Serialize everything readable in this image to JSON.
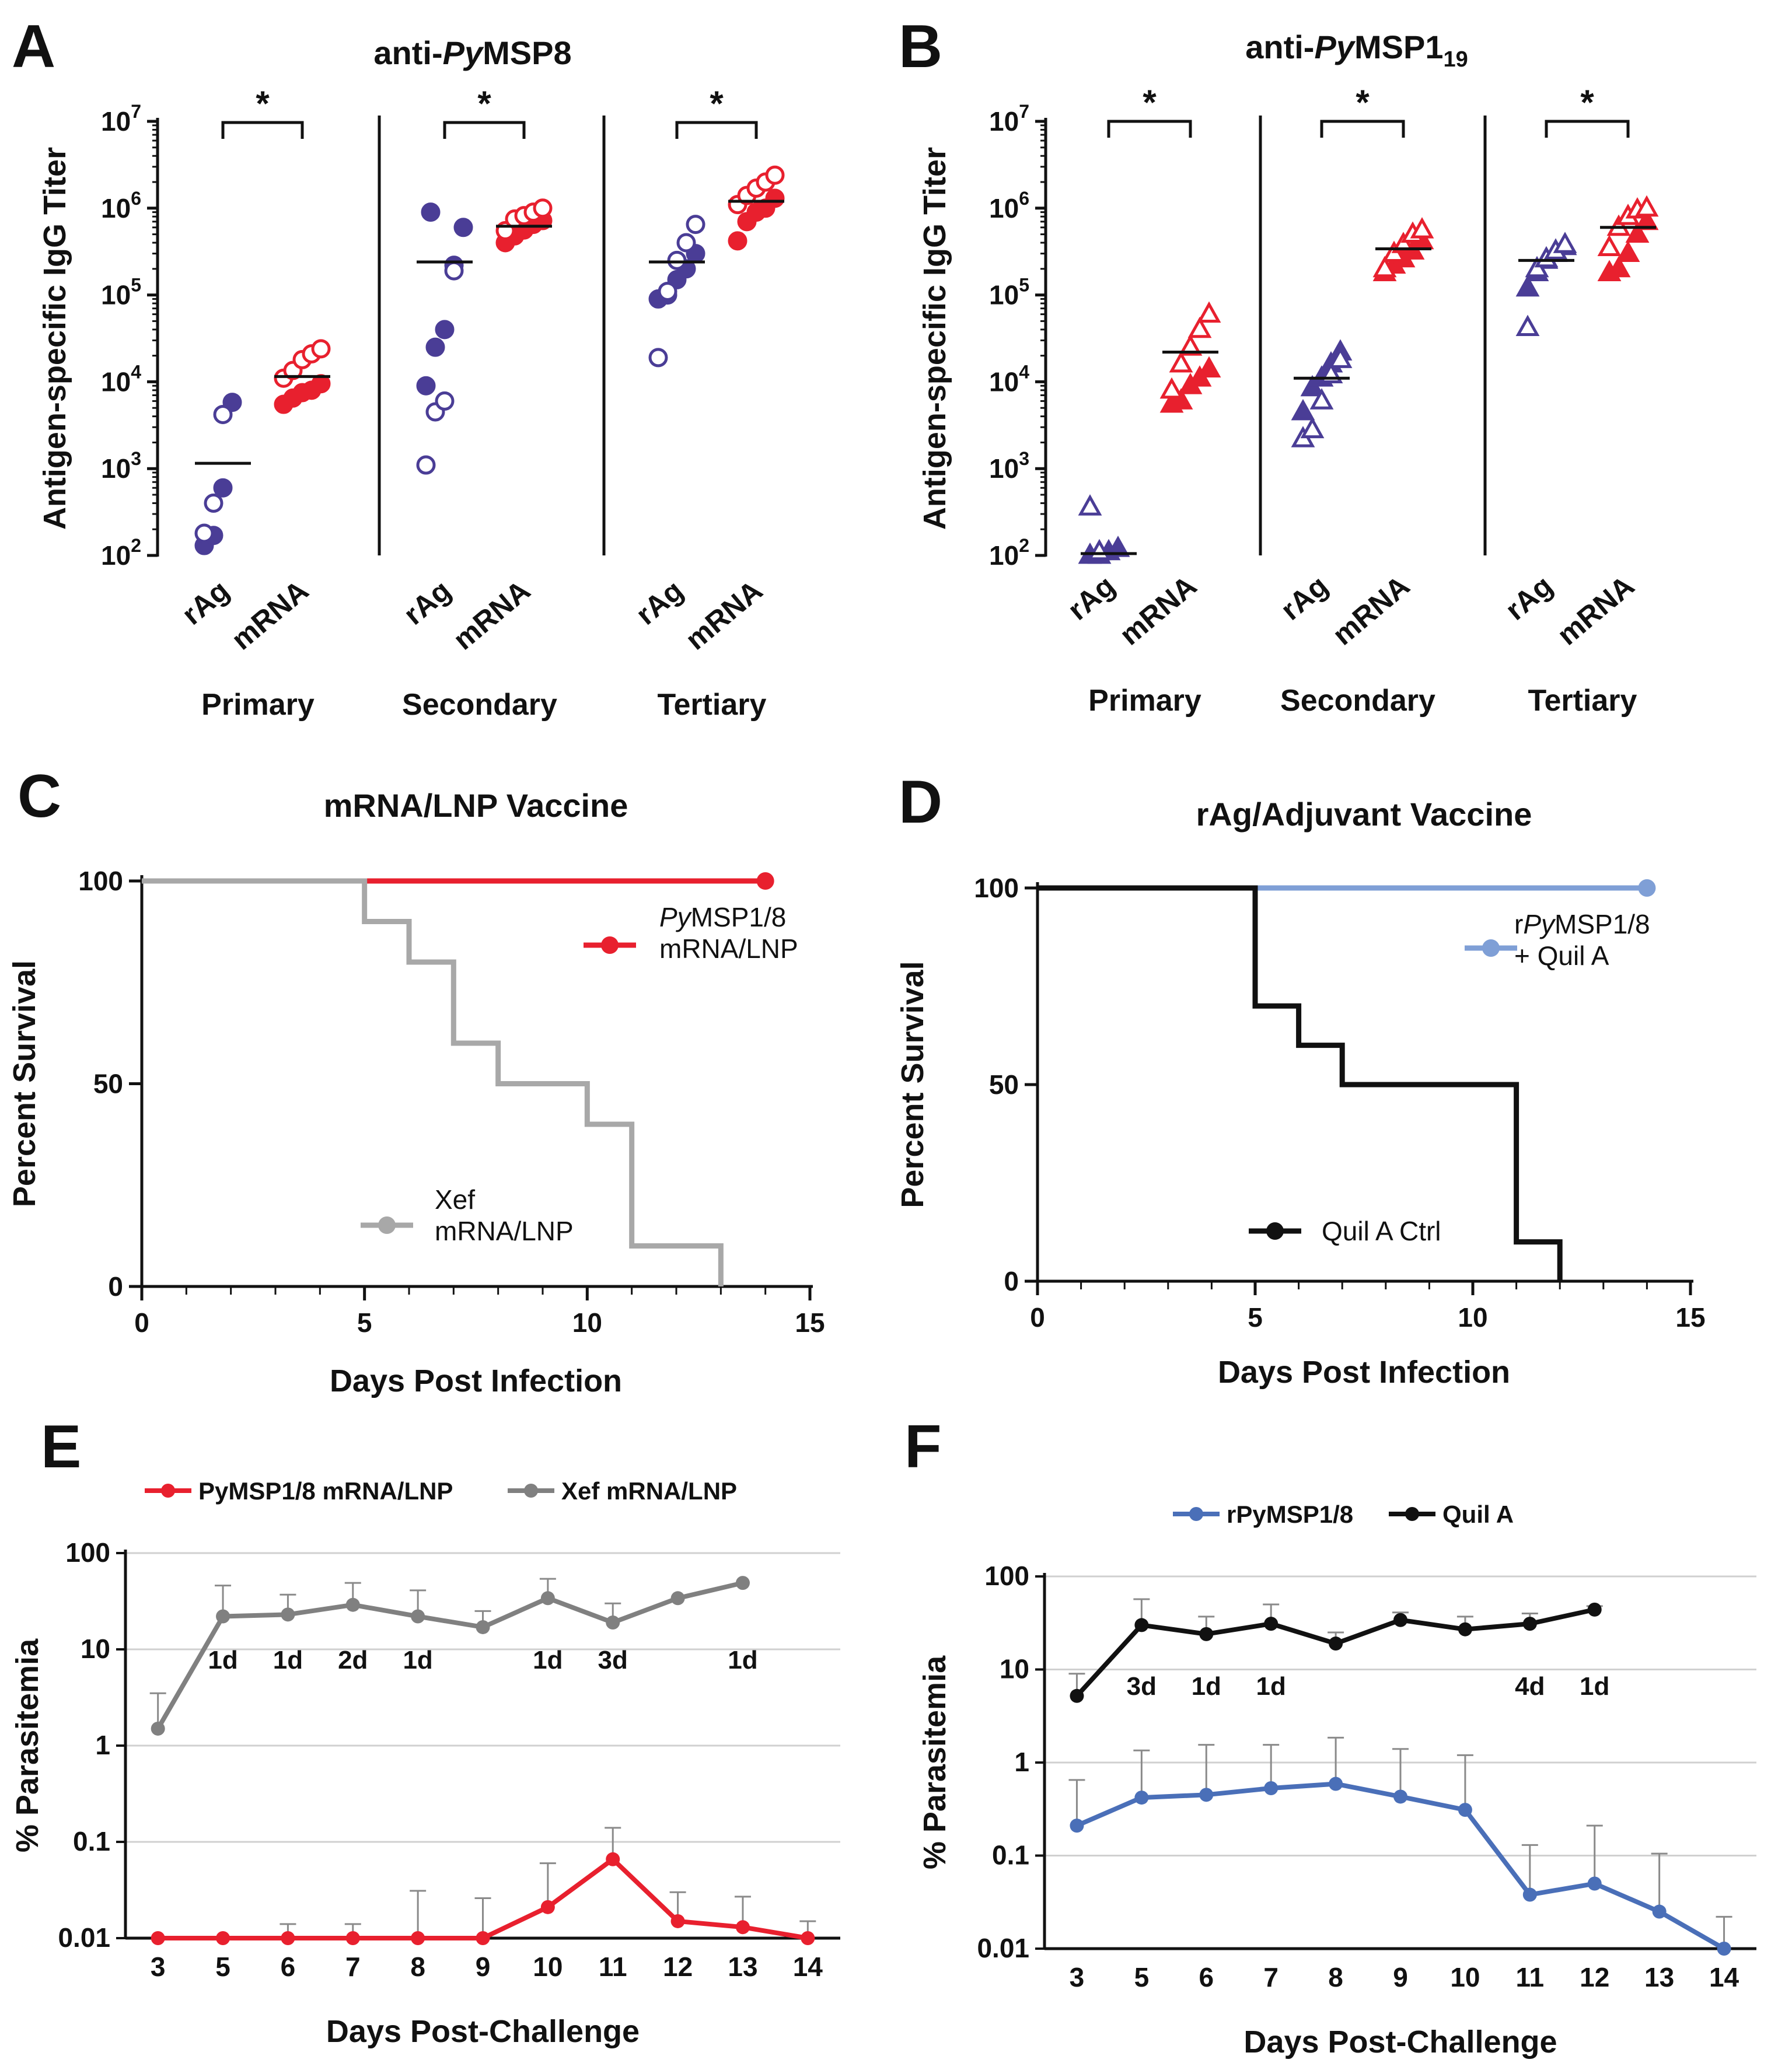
{
  "colors": {
    "blue_dark": "#4a3d96",
    "red": "#e8202e",
    "gray_line": "#a8a8a8",
    "light_blue": "#7f9fd6",
    "black": "#111111",
    "gray_dark": "#808080",
    "blue_f": "#4a6fb8",
    "grid": "#d0d0d0"
  },
  "chart_data": [
    {
      "id": "A",
      "type": "scatter",
      "letter": "A",
      "title_prefix": "anti-",
      "title_italic": "Py",
      "title_suffix": "MSP8",
      "ylabel": "Antigen-specific IgG Titer",
      "yscale": "log10",
      "ylim": [
        100,
        10000000
      ],
      "ytick_base": "10",
      "ytick_exps": [
        "2",
        "3",
        "4",
        "5",
        "6",
        "7"
      ],
      "marker": "circle",
      "significance": "*",
      "groups": [
        {
          "name": "Primary",
          "rAg_filled": [
            130,
            170,
            600,
            5800
          ],
          "rAg_open": [
            180,
            400,
            4200
          ],
          "rAg_mean": 1150,
          "mRNA_filled": [
            5500,
            6500,
            7500,
            8000,
            9500
          ],
          "mRNA_open": [
            11000,
            13500,
            18000,
            21000,
            24000
          ],
          "mRNA_mean": 11500
        },
        {
          "name": "Secondary",
          "rAg_filled": [
            9000,
            25000,
            40000,
            220000,
            600000,
            900000
          ],
          "rAg_open": [
            1100,
            4500,
            6000,
            190000
          ],
          "rAg_mean": 240000,
          "mRNA_filled": [
            400000,
            480000,
            560000,
            650000,
            720000
          ],
          "mRNA_open": [
            550000,
            750000,
            820000,
            900000,
            1000000
          ],
          "mRNA_mean": 620000
        },
        {
          "name": "Tertiary",
          "rAg_filled": [
            90000,
            100000,
            150000,
            200000,
            300000
          ],
          "rAg_open": [
            19000,
            110000,
            250000,
            400000,
            650000
          ],
          "rAg_mean": 240000,
          "mRNA_filled": [
            420000,
            700000,
            900000,
            1000000,
            1300000
          ],
          "mRNA_open": [
            1100000,
            1400000,
            1700000,
            2000000,
            2400000
          ],
          "mRNA_mean": 1200000
        }
      ],
      "category_labels": [
        "rAg",
        "mRNA"
      ]
    },
    {
      "id": "B",
      "type": "scatter",
      "letter": "B",
      "title_prefix": "anti-",
      "title_italic": "Py",
      "title_suffix": "MSP1",
      "title_sub": "19",
      "ylabel": "Antigen-specific IgG Titer",
      "yscale": "log10",
      "ylim": [
        100,
        10000000
      ],
      "ytick_base": "10",
      "ytick_exps": [
        "2",
        "3",
        "4",
        "5",
        "6",
        "7"
      ],
      "marker": "triangle",
      "significance": "*",
      "groups": [
        {
          "name": "Primary",
          "rAg_filled": [
            100,
            100,
            110,
            120
          ],
          "rAg_open": [
            360,
            110
          ],
          "rAg_mean": 105,
          "mRNA_filled": [
            5500,
            6000,
            9000,
            11000,
            14000
          ],
          "mRNA_open": [
            8000,
            16000,
            25000,
            40000,
            60000
          ],
          "mRNA_mean": 22000
        },
        {
          "name": "Secondary",
          "rAg_filled": [
            4500,
            8500,
            11000,
            16000,
            22000
          ],
          "rAg_open": [
            2200,
            2800,
            6000,
            12000,
            18000
          ],
          "rAg_mean": 11000,
          "mRNA_filled": [
            180000,
            220000,
            260000,
            320000,
            420000
          ],
          "mRNA_open": [
            200000,
            300000,
            380000,
            500000,
            560000
          ],
          "mRNA_mean": 340000
        },
        {
          "name": "Tertiary",
          "rAg_filled": [
            120000,
            180000,
            250000,
            300000,
            360000
          ],
          "rAg_open": [
            42000,
            200000,
            260000,
            320000,
            380000
          ],
          "rAg_mean": 250000,
          "mRNA_filled": [
            180000,
            200000,
            300000,
            500000,
            700000
          ],
          "mRNA_open": [
            350000,
            600000,
            800000,
            950000,
            1000000
          ],
          "mRNA_mean": 600000
        }
      ],
      "category_labels": [
        "rAg",
        "mRNA"
      ]
    },
    {
      "id": "C",
      "type": "line",
      "subtype": "kaplan-meier",
      "letter": "C",
      "title": "mRNA/LNP Vaccine",
      "xlabel": "Days Post Infection",
      "ylabel": "Percent Survival",
      "xlim": [
        0,
        15
      ],
      "ylim": [
        0,
        100
      ],
      "xticks": [
        "0",
        "5",
        "10",
        "15"
      ],
      "yticks": [
        "0",
        "50",
        "100"
      ],
      "series": [
        {
          "name": "PyMSP1/8 mRNA/LNP",
          "legend_italic": "Py",
          "legend_line1_rest": "MSP1/8",
          "legend_line2": "mRNA/LNP",
          "steps": [
            [
              0,
              100
            ],
            [
              14,
              100
            ]
          ],
          "end_marker": [
            14,
            100
          ]
        },
        {
          "name": "Xef mRNA/LNP",
          "legend_line1": "Xef",
          "legend_line2": "mRNA/LNP",
          "steps": [
            [
              0,
              100
            ],
            [
              5,
              100
            ],
            [
              5,
              90
            ],
            [
              6,
              90
            ],
            [
              6,
              80
            ],
            [
              7,
              80
            ],
            [
              7,
              60
            ],
            [
              8,
              60
            ],
            [
              8,
              50
            ],
            [
              10,
              50
            ],
            [
              10,
              40
            ],
            [
              11,
              40
            ],
            [
              11,
              10
            ],
            [
              13,
              10
            ],
            [
              13,
              0
            ]
          ]
        }
      ]
    },
    {
      "id": "D",
      "type": "line",
      "subtype": "kaplan-meier",
      "letter": "D",
      "title": "rAg/Adjuvant Vaccine",
      "xlabel": "Days Post Infection",
      "ylabel": "Percent Survival",
      "xlim": [
        0,
        15
      ],
      "ylim": [
        0,
        100
      ],
      "xticks": [
        "0",
        "5",
        "10",
        "15"
      ],
      "yticks": [
        "0",
        "50",
        "100"
      ],
      "series": [
        {
          "name": "rPyMSP1/8 + Quil A",
          "legend_pre": "r",
          "legend_italic": "Py",
          "legend_line1_rest": "MSP1/8",
          "legend_line2": "+ Quil A",
          "steps": [
            [
              0,
              100
            ],
            [
              14,
              100
            ]
          ],
          "end_marker": [
            14,
            100
          ]
        },
        {
          "name": "Quil A Ctrl",
          "legend_line1": "Quil A Ctrl",
          "steps": [
            [
              0,
              100
            ],
            [
              5,
              100
            ],
            [
              5,
              70
            ],
            [
              6,
              70
            ],
            [
              6,
              60
            ],
            [
              7,
              60
            ],
            [
              7,
              50
            ],
            [
              11,
              50
            ],
            [
              11,
              10
            ],
            [
              12,
              10
            ],
            [
              12,
              0
            ]
          ]
        }
      ]
    },
    {
      "id": "E",
      "type": "line",
      "letter": "E",
      "xlabel": "Days Post-Challenge",
      "ylabel": "% Parasitemia",
      "yscale": "log10",
      "ylim": [
        0.01,
        100
      ],
      "yticks": [
        "0.01",
        "0.1",
        "1",
        "10",
        "100"
      ],
      "categories": [
        "3",
        "5",
        "6",
        "7",
        "8",
        "9",
        "10",
        "11",
        "12",
        "13",
        "14"
      ],
      "series": [
        {
          "name": "PyMSP1/8 mRNA/LNP",
          "values": [
            0.01,
            0.01,
            0.01,
            0.01,
            0.01,
            0.01,
            0.021,
            0.066,
            0.015,
            0.013,
            0.01
          ],
          "err_upper": [
            null,
            null,
            0.014,
            0.014,
            0.031,
            0.026,
            0.06,
            0.14,
            0.03,
            0.027,
            0.015
          ]
        },
        {
          "name": "Xef mRNA/LNP",
          "values": [
            1.5,
            22,
            23,
            29,
            22,
            17,
            34,
            19,
            34,
            49,
            null
          ],
          "err_upper": [
            3.5,
            46,
            37,
            49,
            41,
            25,
            54,
            30,
            null,
            null,
            null
          ]
        }
      ],
      "death_labels": [
        {
          "day": "5",
          "text": "1d"
        },
        {
          "day": "6",
          "text": "1d"
        },
        {
          "day": "7",
          "text": "2d"
        },
        {
          "day": "8",
          "text": "1d"
        },
        {
          "day": "10",
          "text": "1d"
        },
        {
          "day": "11",
          "text": "3d"
        },
        {
          "day": "13",
          "text": "1d"
        }
      ]
    },
    {
      "id": "F",
      "type": "line",
      "letter": "F",
      "xlabel": "Days Post-Challenge",
      "ylabel": "% Parasitemia",
      "yscale": "log10",
      "ylim": [
        0.01,
        100
      ],
      "yticks": [
        "0.01",
        "0.1",
        "1",
        "10",
        "100"
      ],
      "categories": [
        "3",
        "5",
        "6",
        "7",
        "8",
        "9",
        "10",
        "11",
        "12",
        "13",
        "14"
      ],
      "series": [
        {
          "name": "rPyMSP1/8",
          "values": [
            0.21,
            0.42,
            0.45,
            0.53,
            0.59,
            0.43,
            0.31,
            0.038,
            0.05,
            0.025,
            0.01
          ],
          "err_upper": [
            0.65,
            1.35,
            1.55,
            1.55,
            1.85,
            1.4,
            1.2,
            0.13,
            0.21,
            0.105,
            0.022
          ]
        },
        {
          "name": "Quil A",
          "values": [
            5.2,
            30,
            24,
            31,
            19,
            34,
            27,
            31,
            44,
            null,
            null
          ],
          "err_upper": [
            9,
            57,
            37,
            50,
            25,
            41,
            37,
            40,
            48,
            null,
            null
          ]
        }
      ],
      "death_labels": [
        {
          "day": "5",
          "text": "3d"
        },
        {
          "day": "6",
          "text": "1d"
        },
        {
          "day": "7",
          "text": "1d"
        },
        {
          "day": "11",
          "text": "4d"
        },
        {
          "day": "12",
          "text": "1d"
        }
      ]
    }
  ]
}
